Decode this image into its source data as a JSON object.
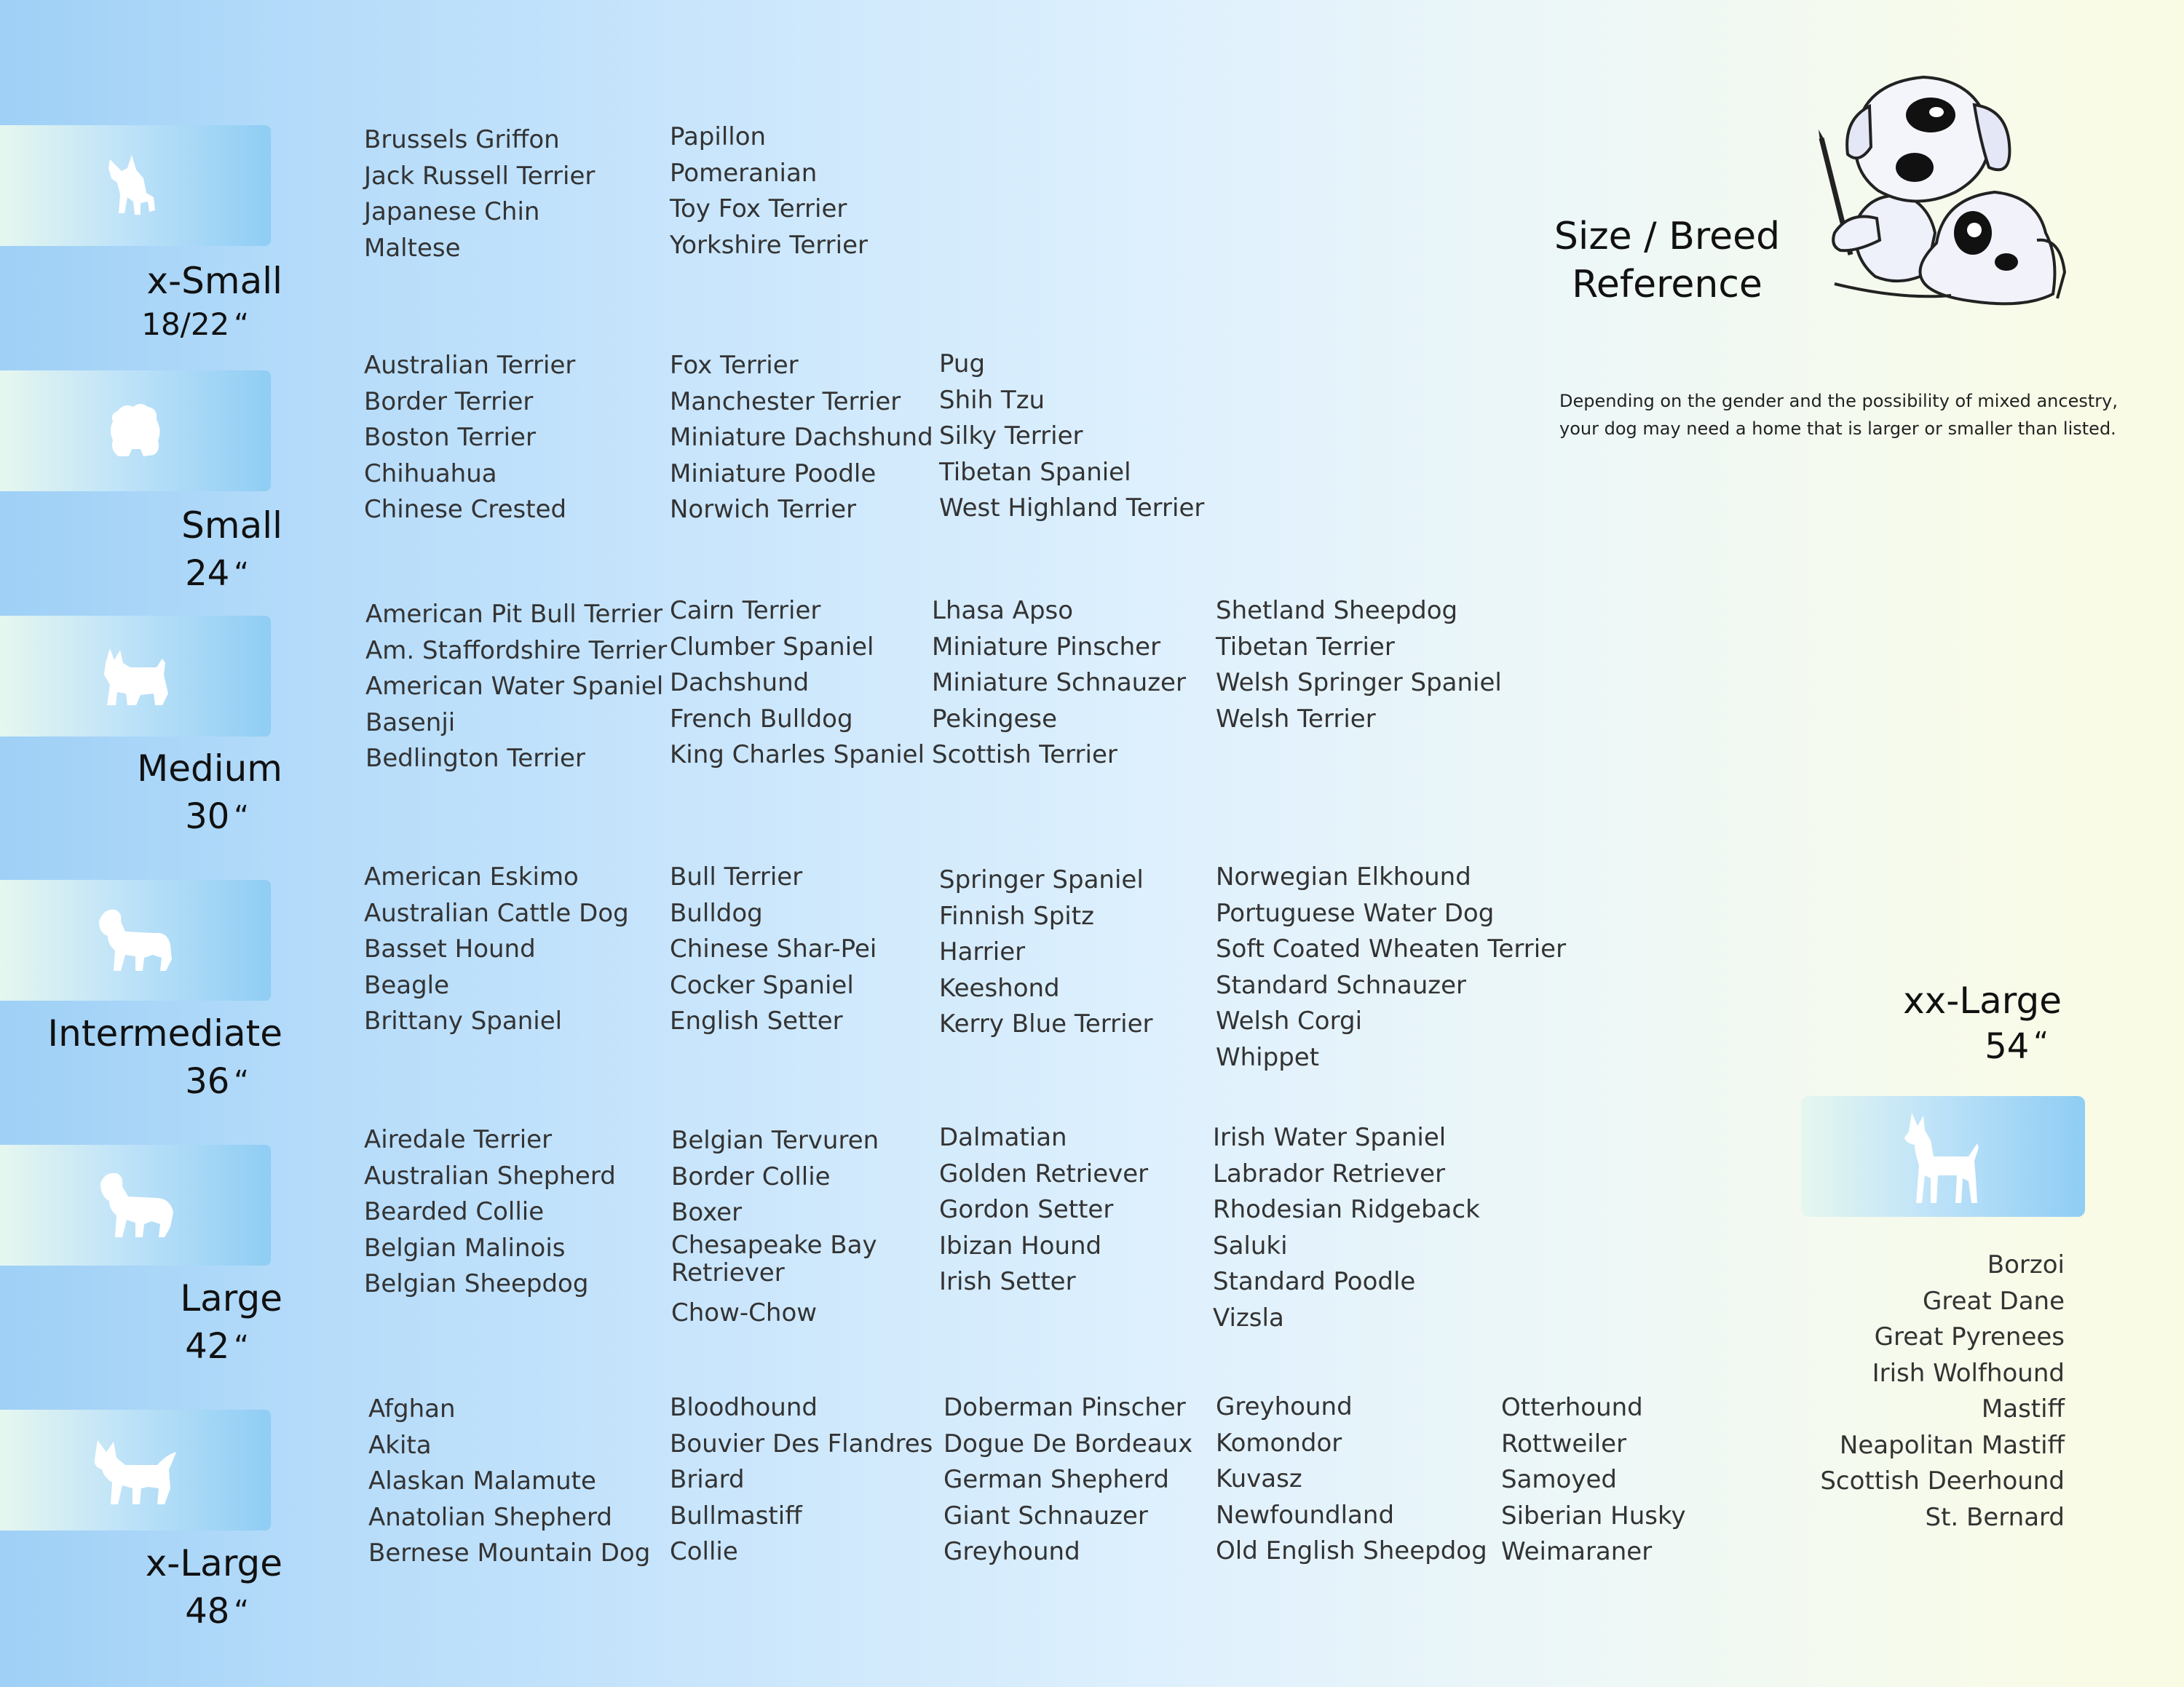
{
  "title": "Size / Breed Reference",
  "note": [
    "Depending on the gender and the possibility of mixed ancestry,",
    "your dog may need  a home that is larger or smaller than listed."
  ],
  "sizes": [
    {
      "label": "x-Small",
      "dimension": "18/22",
      "icon": "papillon-silhouette-icon",
      "columns": [
        [
          "Brussels Griffon",
          "Jack Russell Terrier",
          "Japanese Chin",
          "Maltese"
        ],
        [
          "Papillon",
          "Pomeranian",
          "Toy Fox Terrier",
          "Yorkshire Terrier"
        ]
      ]
    },
    {
      "label": "Small",
      "dimension": "24",
      "icon": "shih-tzu-silhouette-icon",
      "columns": [
        [
          "Australian Terrier",
          "Border Terrier",
          "Boston Terrier",
          "Chihuahua",
          "Chinese Crested"
        ],
        [
          "Fox Terrier",
          "Manchester Terrier",
          "Miniature Dachshund",
          "Miniature Poodle",
          "Norwich Terrier"
        ],
        [
          "Pug",
          "Shih Tzu",
          "Silky Terrier",
          "Tibetan Spaniel",
          "West Highland Terrier"
        ]
      ]
    },
    {
      "label": "Medium",
      "dimension": "30",
      "icon": "terrier-silhouette-icon",
      "columns": [
        [
          "American Pit Bull Terrier",
          "Am. Staffordshire Terrier",
          "American Water Spaniel",
          "Basenji",
          "Bedlington Terrier"
        ],
        [
          "Cairn Terrier",
          "Clumber Spaniel",
          "Dachshund",
          "French Bulldog",
          "King Charles Spaniel"
        ],
        [
          "Lhasa Apso",
          "Miniature Pinscher",
          "Miniature Schnauzer",
          "Pekingese",
          "Scottish Terrier"
        ],
        [
          "Shetland Sheepdog",
          "Tibetan Terrier",
          "Welsh Springer Spaniel",
          "Welsh Terrier"
        ]
      ]
    },
    {
      "label": "Intermediate",
      "dimension": "36",
      "icon": "spaniel-silhouette-icon",
      "columns": [
        [
          "American Eskimo",
          "Australian Cattle Dog",
          "Basset Hound",
          "Beagle",
          "Brittany Spaniel"
        ],
        [
          "Bull Terrier",
          "Bulldog",
          "Chinese Shar-Pei",
          "Cocker Spaniel",
          "English Setter"
        ],
        [
          "Springer Spaniel",
          "Finnish Spitz",
          "Harrier",
          "Keeshond",
          "Kerry Blue Terrier"
        ],
        [
          "Norwegian Elkhound",
          "Portuguese Water Dog",
          "Soft Coated Wheaten Terrier",
          "Standard Schnauzer",
          "Welsh Corgi",
          "Whippet"
        ]
      ]
    },
    {
      "label": "Large",
      "dimension": "42",
      "icon": "retriever-silhouette-icon",
      "columns": [
        [
          "Airedale Terrier",
          "Australian Shepherd",
          "Bearded Collie",
          "Belgian Malinois",
          "Belgian Sheepdog"
        ],
        [
          "Belgian Tervuren",
          "Border Collie",
          "Boxer",
          "Chesapeake Bay Retriever",
          "Chow-Chow"
        ],
        [
          "Dalmatian",
          "Golden Retriever",
          "Gordon Setter",
          "Ibizan Hound",
          "Irish Setter"
        ],
        [
          "Irish Water Spaniel",
          "Labrador Retriever",
          "Rhodesian Ridgeback",
          "Saluki",
          "Standard Poodle",
          "Vizsla"
        ]
      ]
    },
    {
      "label": "x-Large",
      "dimension": "48",
      "icon": "husky-silhouette-icon",
      "columns": [
        [
          "Afghan",
          "Akita",
          "Alaskan Malamute",
          "Anatolian Shepherd",
          "Bernese Mountain Dog"
        ],
        [
          "Bloodhound",
          "Bouvier Des Flandres",
          "Briard",
          "Bullmastiff",
          "Collie"
        ],
        [
          "Doberman Pinscher",
          "Dogue De Bordeaux",
          "German Shepherd",
          "Giant Schnauzer",
          "Greyhound"
        ],
        [
          "Greyhound",
          "Komondor",
          "Kuvasz",
          "Newfoundland",
          "Old English Sheepdog"
        ],
        [
          "Otterhound",
          "Rottweiler",
          "Samoyed",
          "Siberian Husky",
          "Weimaraner"
        ]
      ]
    }
  ],
  "xx_large": {
    "label": "xx-Large",
    "dimension": "54",
    "icon": "great-dane-silhouette-icon",
    "breeds": [
      "Borzoi",
      "Great Dane",
      "Great Pyrenees",
      "Irish Wolfhound",
      "Mastiff",
      "Neapolitan Mastiff",
      "Scottish Deerhound",
      "St. Bernard"
    ]
  },
  "quote_mark": "“",
  "colors": {
    "band_light": "#e6f7ef",
    "band_dark": "#8fcdf4",
    "background_left": "#9fd0f6",
    "background_right": "#fafbe3"
  }
}
